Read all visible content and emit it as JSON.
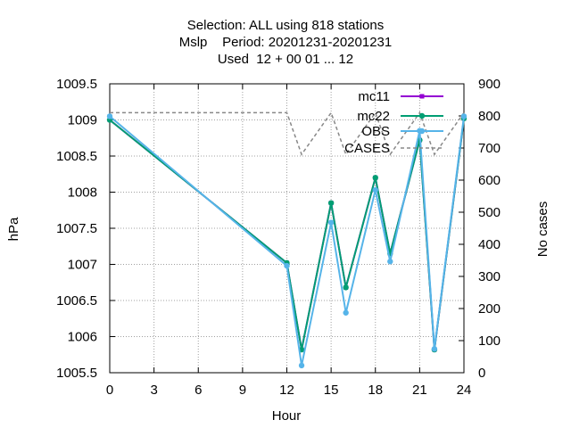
{
  "chart_data": {
    "type": "line",
    "title_lines": [
      "Selection: ALL using   818 stations",
      "Mslp    Period: 20201231-20201231",
      "Used  12 + 00 01 ... 12"
    ],
    "xlabel": "Hour",
    "ylabel": "hPa",
    "y2label": "No cases",
    "xlim": [
      0,
      24
    ],
    "ylim": [
      1005.5,
      1009.5
    ],
    "y2lim": [
      0,
      900
    ],
    "xticks": [
      0,
      3,
      6,
      9,
      12,
      15,
      18,
      21,
      24
    ],
    "yticks": [
      1005.5,
      1006,
      1006.5,
      1007,
      1007.5,
      1008,
      1008.5,
      1009,
      1009.5
    ],
    "y2ticks": [
      0,
      100,
      200,
      300,
      400,
      500,
      600,
      700,
      800,
      900
    ],
    "grid": true,
    "legend_position": "top-right",
    "x": [
      0,
      12,
      13,
      15,
      16,
      18,
      19,
      21,
      22,
      24
    ],
    "series": [
      {
        "name": "mc11",
        "color": "#9400d3",
        "marker": "filled-square",
        "axis": "left",
        "values": [
          1009.0,
          1007.02,
          1005.82,
          1007.85,
          1006.68,
          1008.2,
          1007.15,
          1008.72,
          1005.82,
          1009.02
        ]
      },
      {
        "name": "mc22",
        "color": "#009e73",
        "marker": "filled-circle",
        "axis": "left",
        "values": [
          1009.0,
          1007.02,
          1005.82,
          1007.85,
          1006.68,
          1008.2,
          1007.15,
          1008.72,
          1005.82,
          1009.02
        ]
      },
      {
        "name": "OBS",
        "color": "#56b4e9",
        "marker": "filled-circle",
        "axis": "left",
        "values": [
          1009.05,
          1006.98,
          1005.6,
          1007.58,
          1006.33,
          1008.03,
          1007.04,
          1008.85,
          1005.83,
          1009.05
        ]
      },
      {
        "name": "CASES",
        "color": "#888888",
        "dash": "dotted",
        "axis": "right",
        "values": [
          810,
          810,
          680,
          810,
          680,
          810,
          680,
          810,
          680,
          810
        ]
      }
    ]
  }
}
